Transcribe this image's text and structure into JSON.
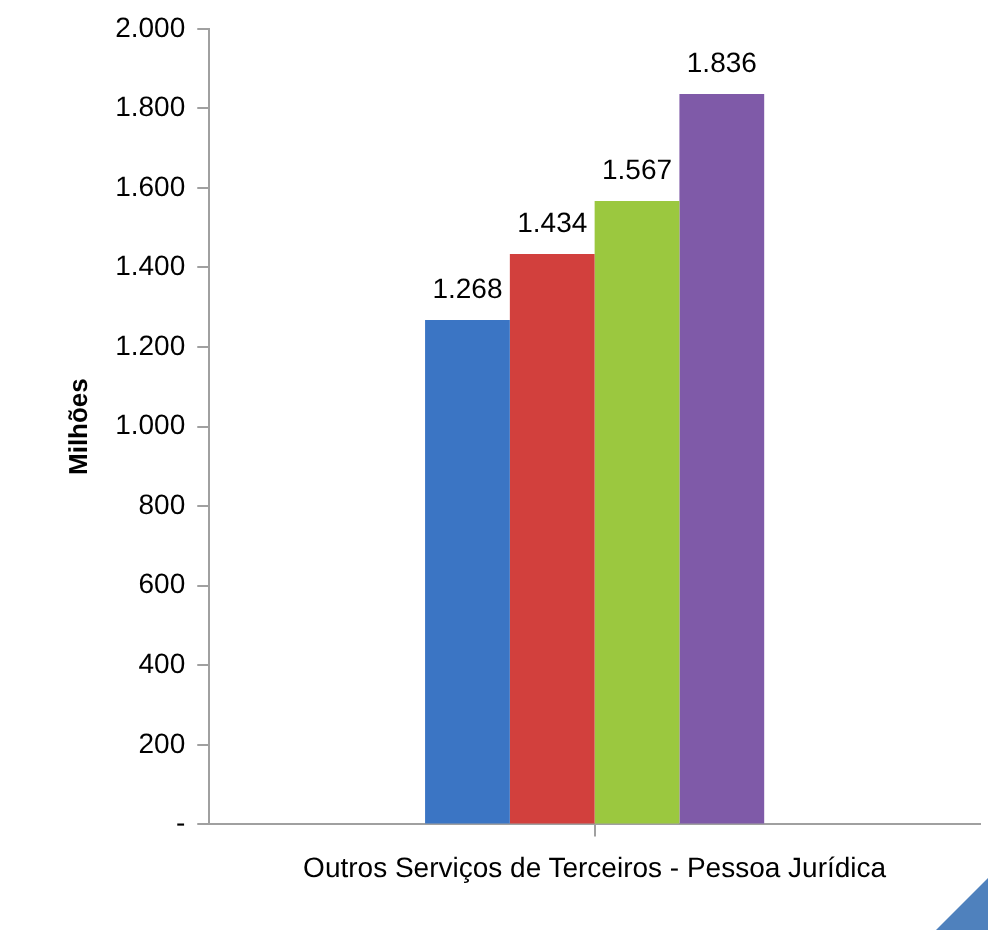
{
  "chart_data": {
    "type": "bar",
    "ylabel": "Milhões",
    "categories": [
      "Outros Serviços de Terceiros - Pessoa Jurídica"
    ],
    "series": [
      {
        "color": "#3b75c4",
        "values": [
          1268
        ],
        "value_labels": [
          "1.268"
        ]
      },
      {
        "color": "#d2403d",
        "values": [
          1434
        ],
        "value_labels": [
          "1.434"
        ]
      },
      {
        "color": "#9bc83f",
        "values": [
          1567
        ],
        "value_labels": [
          "1.567"
        ]
      },
      {
        "color": "#7f5aa8",
        "values": [
          1836
        ],
        "value_labels": [
          "1.836"
        ]
      }
    ],
    "ylim": [
      0,
      2000
    ],
    "yticks": [
      {
        "value": 0,
        "label": "-"
      },
      200,
      400,
      600,
      800,
      {
        "value": 1000,
        "label": "1.000"
      },
      {
        "value": 1200,
        "label": "1.200"
      },
      {
        "value": 1400,
        "label": "1.400"
      },
      {
        "value": 1600,
        "label": "1.600"
      },
      {
        "value": 1800,
        "label": "1.800"
      },
      {
        "value": 2000,
        "label": "2.000"
      }
    ],
    "grid": false,
    "legend": false
  }
}
